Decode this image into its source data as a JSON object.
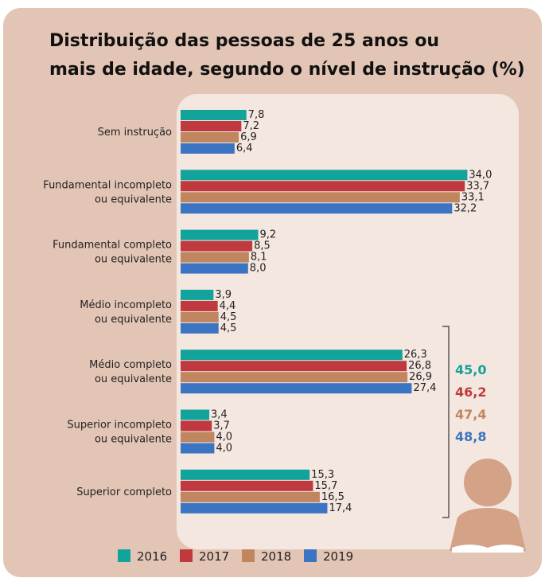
{
  "chart_data": {
    "type": "bar",
    "orientation": "horizontal",
    "title": [
      "Distribuição das pessoas de 25 anos ou",
      "mais de idade, segundo o nível de instrução (%)"
    ],
    "categories": [
      [
        "Sem instrução"
      ],
      [
        "Fundamental incompleto",
        "ou equivalente"
      ],
      [
        "Fundamental completo",
        "ou equivalente"
      ],
      [
        "Médio incompleto",
        "ou equivalente"
      ],
      [
        "Médio completo",
        "ou equivalente"
      ],
      [
        "Superior incompleto",
        "ou equivalente"
      ],
      [
        "Superior completo"
      ]
    ],
    "series": [
      {
        "name": "2016",
        "color": "#12a39a",
        "values": [
          7.8,
          34.0,
          9.2,
          3.9,
          26.3,
          3.4,
          15.3
        ],
        "value_labels": [
          "7,8",
          "34,0",
          "9,2",
          "3,9",
          "26,3",
          "3,4",
          "15,3"
        ],
        "total": 45.0,
        "total_label": "45,0"
      },
      {
        "name": "2017",
        "color": "#c0393f",
        "values": [
          7.2,
          33.7,
          8.5,
          4.4,
          26.8,
          3.7,
          15.7
        ],
        "value_labels": [
          "7,2",
          "33,7",
          "8,5",
          "4,4",
          "26,8",
          "3,7",
          "15,7"
        ],
        "total": 46.2,
        "total_label": "46,2"
      },
      {
        "name": "2018",
        "color": "#bf8660",
        "values": [
          6.9,
          33.1,
          8.1,
          4.5,
          26.9,
          4.0,
          16.5
        ],
        "value_labels": [
          "6,9",
          "33,1",
          "8,1",
          "4,5",
          "26,9",
          "4,0",
          "16,5"
        ],
        "total": 47.4,
        "total_label": "47,4"
      },
      {
        "name": "2019",
        "color": "#3b74c2",
        "values": [
          6.4,
          32.2,
          8.0,
          4.5,
          27.4,
          4.0,
          17.4
        ],
        "value_labels": [
          "6,4",
          "32,2",
          "8,0",
          "4,5",
          "27,4",
          "4,0",
          "17,4"
        ],
        "total": 48.8,
        "total_label": "48,8"
      }
    ],
    "legend": "bottom"
  }
}
